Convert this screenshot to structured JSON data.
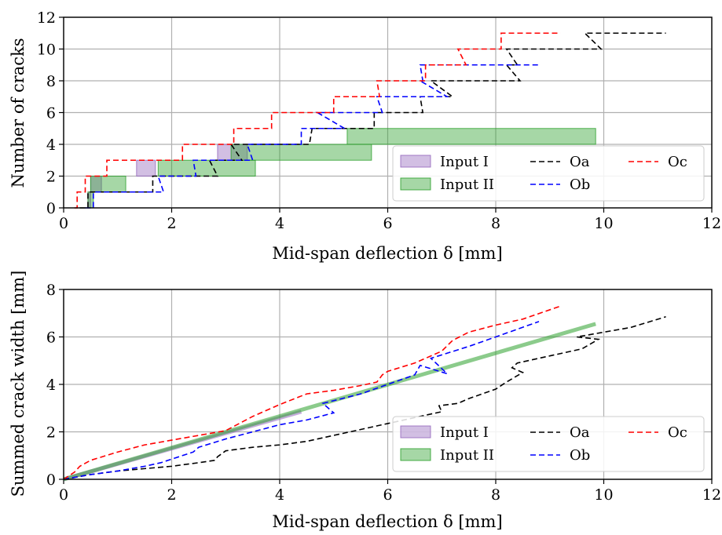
{
  "chart_data": [
    {
      "type": "line",
      "xlabel": "Mid-span deflection δ [mm]",
      "ylabel": "Number of cracks",
      "xlim": [
        0,
        12
      ],
      "ylim": [
        0,
        12
      ],
      "xticks": [
        "0",
        "2",
        "4",
        "6",
        "8",
        "10",
        "12"
      ],
      "yticks": [
        "0",
        "2",
        "4",
        "6",
        "8",
        "10",
        "12"
      ],
      "grid": true,
      "legend": {
        "placement": "lower-right",
        "entries": [
          {
            "label": "Input I",
            "style": "band",
            "color": "#9467bd"
          },
          {
            "label": "Input II",
            "style": "band",
            "color": "#2ca02c"
          },
          {
            "label": "Oa",
            "style": "dashed",
            "color": "#000000"
          },
          {
            "label": "Ob",
            "style": "dashed",
            "color": "#0000ff"
          },
          {
            "label": "Oc",
            "style": "dashed",
            "color": "#ff0000"
          }
        ]
      },
      "bands": [
        {
          "name": "Input I",
          "color": "#9467bd",
          "segments": [
            {
              "y0": 0,
              "y1": 1,
              "x_start": 0.45,
              "x_end": 0.5
            },
            {
              "y0": 1,
              "y1": 2,
              "x_start": 0.5,
              "x_end": 0.7
            },
            {
              "y0": 2,
              "y1": 3,
              "x_start": 1.35,
              "x_end": 1.7
            },
            {
              "y0": 3,
              "y1": 4,
              "x_start": 2.85,
              "x_end": 3.4
            }
          ]
        },
        {
          "name": "Input II",
          "color": "#2ca02c",
          "segments": [
            {
              "y0": 0,
              "y1": 1,
              "x_start": 0.45,
              "x_end": 0.55
            },
            {
              "y0": 1,
              "y1": 2,
              "x_start": 0.5,
              "x_end": 1.15
            },
            {
              "y0": 2,
              "y1": 3,
              "x_start": 1.75,
              "x_end": 3.55
            },
            {
              "y0": 3,
              "y1": 4,
              "x_start": 3.1,
              "x_end": 5.7
            },
            {
              "y0": 4,
              "y1": 5,
              "x_start": 5.25,
              "x_end": 9.85
            }
          ]
        }
      ],
      "series": [
        {
          "name": "Oa",
          "color": "#000000",
          "x": [
            0.3,
            0.45,
            0.45,
            1.65,
            1.65,
            2.85,
            2.7,
            3.3,
            3.1,
            4.55,
            4.6,
            5.75,
            5.75,
            6.65,
            6.6,
            7.2,
            6.8,
            8.45,
            8.2,
            8.4,
            8.2,
            9.95,
            9.65,
            11.15
          ],
          "y": [
            0,
            0,
            1,
            1,
            2,
            2,
            3,
            3,
            4,
            4,
            5,
            5,
            6,
            6,
            7,
            7,
            8,
            8,
            9,
            9,
            10,
            10,
            11,
            11
          ]
        },
        {
          "name": "Ob",
          "color": "#0000ff",
          "x": [
            0.4,
            0.55,
            0.55,
            1.85,
            1.75,
            2.45,
            2.4,
            3.5,
            3.4,
            4.4,
            4.4,
            5.2,
            4.7,
            5.9,
            5.8,
            7.1,
            6.6,
            6.65,
            6.6,
            8.8
          ],
          "y": [
            0,
            0,
            1,
            1,
            2,
            2,
            3,
            3,
            4,
            4,
            5,
            5,
            6,
            6,
            7,
            7,
            8,
            8,
            9,
            9
          ]
        },
        {
          "name": "Oc",
          "color": "#ff0000",
          "x": [
            0.2,
            0.25,
            0.25,
            0.4,
            0.4,
            0.8,
            0.8,
            1.2,
            1.2,
            1.75,
            1.75,
            2.2,
            2.2,
            3.15,
            3.15,
            3.85,
            3.85,
            5.0,
            5.0,
            5.85,
            5.8,
            6.7,
            6.7,
            7.45,
            7.3,
            8.1,
            8.1,
            9.2
          ],
          "y": [
            0,
            0,
            1,
            1,
            2,
            2,
            3,
            3,
            3,
            3,
            3,
            3,
            4,
            4,
            5,
            5,
            6,
            6,
            7,
            7,
            8,
            8,
            9,
            9,
            10,
            10,
            11,
            11
          ]
        }
      ]
    },
    {
      "type": "line",
      "xlabel": "Mid-span deflection δ [mm]",
      "ylabel": "Summed crack width [mm]",
      "xlim": [
        0,
        12
      ],
      "ylim": [
        0,
        8
      ],
      "xticks": [
        "0",
        "2",
        "4",
        "6",
        "8",
        "10",
        "12"
      ],
      "yticks": [
        "0",
        "2",
        "4",
        "6",
        "8"
      ],
      "grid": true,
      "legend": {
        "placement": "lower-right",
        "entries": [
          {
            "label": "Input I",
            "style": "band",
            "color": "#9467bd"
          },
          {
            "label": "Input II",
            "style": "band",
            "color": "#2ca02c"
          },
          {
            "label": "Oa",
            "style": "dashed",
            "color": "#000000"
          },
          {
            "label": "Ob",
            "style": "dashed",
            "color": "#0000ff"
          },
          {
            "label": "Oc",
            "style": "dashed",
            "color": "#ff0000"
          }
        ]
      },
      "bands": [
        {
          "name": "Input I",
          "color": "#9467bd",
          "x": [
            0.0,
            4.4
          ],
          "y": [
            0.0,
            2.85
          ]
        },
        {
          "name": "Input II",
          "color": "#2ca02c",
          "x": [
            0.0,
            9.85
          ],
          "y": [
            0.0,
            6.55
          ]
        }
      ],
      "series": [
        {
          "name": "Oa",
          "color": "#000000",
          "x": [
            0.0,
            0.5,
            1.0,
            1.5,
            2.0,
            2.5,
            2.8,
            2.85,
            3.0,
            3.5,
            4.0,
            4.5,
            5.0,
            5.5,
            6.0,
            6.5,
            7.0,
            6.95,
            7.3,
            7.5,
            8.0,
            8.2,
            8.5,
            8.3,
            8.4,
            9.0,
            9.6,
            9.9,
            9.5,
            10.5,
            11.15
          ],
          "y": [
            0.0,
            0.2,
            0.35,
            0.45,
            0.55,
            0.7,
            0.8,
            0.95,
            1.2,
            1.35,
            1.45,
            1.6,
            1.85,
            2.1,
            2.35,
            2.6,
            2.85,
            3.1,
            3.2,
            3.4,
            3.8,
            4.1,
            4.5,
            4.7,
            4.9,
            5.2,
            5.5,
            5.9,
            6.0,
            6.4,
            6.85
          ]
        },
        {
          "name": "Ob",
          "color": "#0000ff",
          "x": [
            0.0,
            0.5,
            1.0,
            1.5,
            1.8,
            2.4,
            2.5,
            3.0,
            3.5,
            4.0,
            4.5,
            5.0,
            4.8,
            5.5,
            6.0,
            6.5,
            6.6,
            7.1,
            6.8,
            7.5,
            8.0,
            8.8
          ],
          "y": [
            0.0,
            0.2,
            0.35,
            0.55,
            0.7,
            1.15,
            1.35,
            1.7,
            2.0,
            2.3,
            2.5,
            2.8,
            3.2,
            3.6,
            4.0,
            4.4,
            4.8,
            4.45,
            5.1,
            5.6,
            6.0,
            6.65
          ]
        },
        {
          "name": "Oc",
          "color": "#ff0000",
          "x": [
            0.0,
            0.2,
            0.3,
            0.5,
            1.0,
            1.5,
            2.0,
            2.5,
            3.0,
            3.5,
            4.0,
            4.5,
            5.0,
            5.5,
            5.8,
            5.9,
            6.0,
            6.5,
            7.0,
            7.2,
            7.5,
            8.0,
            8.5,
            9.2
          ],
          "y": [
            0.0,
            0.3,
            0.55,
            0.8,
            1.15,
            1.45,
            1.65,
            1.85,
            2.05,
            2.65,
            3.15,
            3.6,
            3.75,
            3.95,
            4.1,
            4.4,
            4.55,
            4.9,
            5.4,
            5.85,
            6.2,
            6.5,
            6.75,
            7.3
          ]
        }
      ]
    }
  ]
}
